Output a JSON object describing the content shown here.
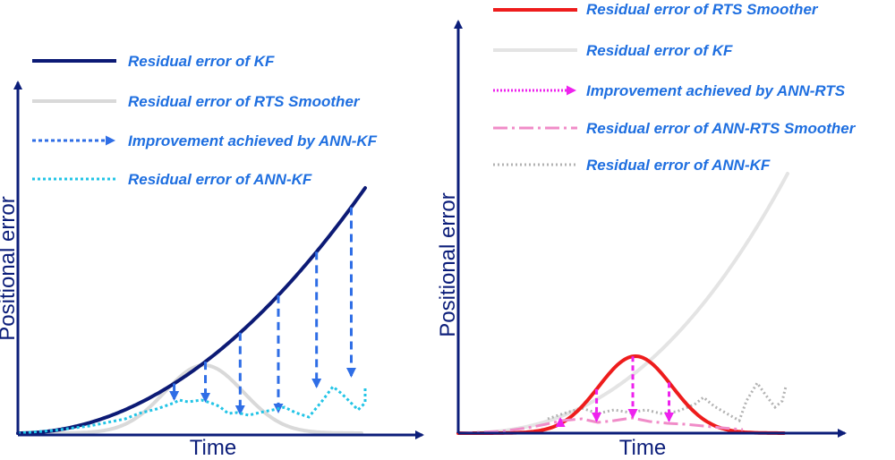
{
  "colors": {
    "axis": "#0c1e7a",
    "kf": "#0c1a75",
    "rts": "#d9d9d9",
    "improvement_kf": "#2f6ee6",
    "ann_kf": "#22c4e6",
    "legend_text": "#1f6fe0",
    "rts_right": "#ee1c1c",
    "kf_right": "#e4e4e4",
    "improvement_rts": "#ee22ee",
    "ann_rts": "#f08cc8",
    "ann_kf_right": "#b3b3b3"
  },
  "chart_data": [
    {
      "type": "line",
      "title": "",
      "xlabel": "Time",
      "ylabel": "Positional error",
      "legend": [
        {
          "label": "Residual error of KF",
          "style": "solid-thick",
          "color_key": "kf"
        },
        {
          "label": "Residual error of RTS Smoother",
          "style": "solid",
          "color_key": "rts"
        },
        {
          "label": "Improvement achieved by ANN-KF",
          "style": "dashed-arrow",
          "color_key": "improvement_kf"
        },
        {
          "label": "Residual error of ANN-KF",
          "style": "dotted",
          "color_key": "ann_kf"
        }
      ],
      "arrow_times": [
        0.45,
        0.54,
        0.64,
        0.75,
        0.86,
        0.96
      ]
    },
    {
      "type": "line",
      "title": "",
      "xlabel": "Time",
      "ylabel": "Positional error",
      "legend": [
        {
          "label": "Residual error of RTS Smoother",
          "style": "solid-thick",
          "color_key": "rts_right"
        },
        {
          "label": "Residual error of KF",
          "style": "solid",
          "color_key": "kf_right"
        },
        {
          "label": "Improvement achieved by ANN-RTS",
          "style": "dotted-arrow",
          "color_key": "improvement_rts"
        },
        {
          "label": "Residual error of ANN-RTS Smoother",
          "style": "dash-dot",
          "color_key": "ann_rts"
        },
        {
          "label": "Residual error of ANN-KF",
          "style": "dotted",
          "color_key": "ann_kf_right"
        }
      ],
      "arrow_times": [
        0.31,
        0.42,
        0.53,
        0.64
      ]
    }
  ]
}
